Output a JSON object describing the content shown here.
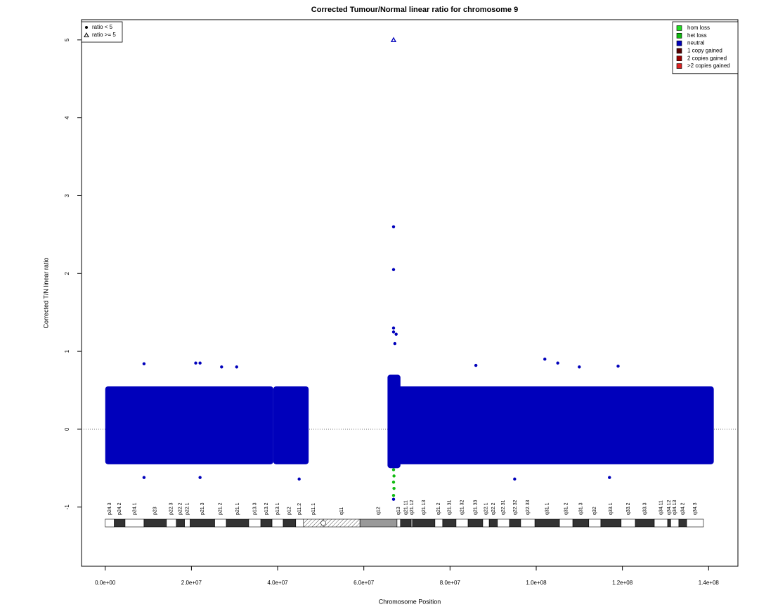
{
  "chart_data": {
    "type": "scatter",
    "title": "Corrected Tumour/Normal linear ratio for chromosome  9",
    "x_label": "Chromosome Position",
    "y_label": "Corrected T/N linear ratio",
    "xlim": [
      -5500000.0,
      146800000.0
    ],
    "ylim": [
      -1.76,
      5.26
    ],
    "xticks": [
      {
        "value": 0,
        "label": "0.0e+00"
      },
      {
        "value": 20000000.0,
        "label": "2.0e+07"
      },
      {
        "value": 40000000.0,
        "label": "4.0e+07"
      },
      {
        "value": 60000000.0,
        "label": "6.0e+07"
      },
      {
        "value": 80000000.0,
        "label": "8.0e+07"
      },
      {
        "value": 100000000.0,
        "label": "1.0e+08"
      },
      {
        "value": 120000000.0,
        "label": "1.2e+08"
      },
      {
        "value": 140000000.0,
        "label": "1.4e+08"
      }
    ],
    "yticks": [
      -1,
      0,
      1,
      2,
      3,
      4,
      5
    ],
    "hline": 0,
    "legend": "top-right",
    "shape_legend": [
      {
        "label": "ratio < 5",
        "marker": "dot"
      },
      {
        "label": "ratio >= 5",
        "marker": "triangle"
      }
    ],
    "series": [
      {
        "name": "hom loss",
        "color": "#22dd22",
        "x": [],
        "values": []
      },
      {
        "name": "het loss",
        "color": "#11bb11",
        "x": [
          66900000.0,
          66900000.0,
          67000000.0,
          66900000.0,
          67000000.0,
          66900000.0
        ],
        "values": [
          -0.45,
          -0.52,
          -0.6,
          -0.68,
          -0.76,
          -0.85
        ]
      },
      {
        "name": "neutral",
        "color": "#0000bb",
        "ranges": [
          {
            "x": [
              0,
              39000000.0
            ],
            "y": [
              -0.45,
              0.55
            ]
          },
          {
            "x": [
              39000000.0,
              47200000.0
            ],
            "y": [
              -0.45,
              0.55
            ]
          },
          {
            "x": [
              65500000.0,
              68500000.0
            ],
            "y": [
              -0.5,
              0.7
            ]
          },
          {
            "x": [
              66000000.0,
              141200000.0
            ],
            "y": [
              -0.45,
              0.55
            ]
          }
        ],
        "x": [
          66900000.0,
          66900000.0,
          66900000.0,
          66900000.0,
          66900000.0,
          67500000.0,
          67200000.0,
          102000000.0,
          105000000.0,
          9000000.0,
          21000000.0,
          22000000.0,
          27000000.0,
          30500000.0,
          86000000.0,
          110000000.0,
          119000000.0,
          9000000.0,
          22000000.0,
          45000000.0,
          95000000.0,
          117000000.0,
          66900000.0
        ],
        "values": [
          5,
          2.6,
          2.05,
          1.3,
          1.25,
          1.22,
          1.1,
          0.9,
          0.85,
          0.84,
          0.85,
          0.85,
          0.8,
          0.8,
          0.82,
          0.8,
          0.81,
          -0.62,
          -0.62,
          -0.64,
          -0.64,
          -0.62,
          -0.9
        ],
        "markers": [
          "triangle",
          "dot",
          "dot",
          "dot",
          "dot",
          "dot",
          "dot",
          "dot",
          "dot",
          "dot",
          "dot",
          "dot",
          "dot",
          "dot",
          "dot",
          "dot",
          "dot",
          "dot",
          "dot",
          "dot",
          "dot",
          "dot",
          "dot"
        ]
      },
      {
        "name": "1 copy gained",
        "color": "#550000",
        "x": [],
        "values": []
      },
      {
        "name": "2 copies gained",
        "color": "#990000",
        "x": [],
        "values": []
      },
      {
        "name": ">2 copies gained",
        "color": "#dd2222",
        "x": [],
        "values": []
      }
    ],
    "cytobands": {
      "names": [
        "p24.3",
        "p24.2",
        "p24.1",
        "p23",
        "p22.3",
        "p22.2",
        "p22.1",
        "p21.3",
        "p21.2",
        "p21.1",
        "p13.3",
        "p13.2",
        "p13.1",
        "p12",
        "p11.2",
        "p11.1",
        "q11",
        "q12",
        "q13",
        "q21.11",
        "q21.12",
        "q21.13",
        "q21.2",
        "q21.31",
        "q21.32",
        "q21.33",
        "q22.1",
        "q22.2",
        "q22.31",
        "q22.32",
        "q22.33",
        "q31.1",
        "q31.2",
        "q31.3",
        "q32",
        "q33.1",
        "q33.2",
        "q33.3",
        "q34.11",
        "q34.12",
        "q34.13",
        "q34.2",
        "q34.3"
      ],
      "starts": [
        0,
        2100000.0,
        4600000.0,
        9000000.0,
        14200000.0,
        16500000.0,
        18400000.0,
        19700000.0,
        25400000.0,
        28100000.0,
        33300000.0,
        36100000.0,
        38700000.0,
        41300000.0,
        44200000.0,
        46000000.0,
        50600000.0,
        59100000.0,
        67700000.0,
        68500000.0,
        71000000.0,
        71300000.0,
        76500000.0,
        78300000.0,
        81400000.0,
        84200000.0,
        87600000.0,
        89100000.0,
        91000000.0,
        93800000.0,
        96400000.0,
        99700000.0,
        105400000.0,
        108500000.0,
        112200000.0,
        115000000.0,
        119700000.0,
        123000000.0,
        127400000.0,
        130500000.0,
        131200000.0,
        133100000.0,
        134900000.0
      ],
      "ends": [
        2100000.0,
        4600000.0,
        9000000.0,
        14200000.0,
        16500000.0,
        18400000.0,
        19700000.0,
        25400000.0,
        28100000.0,
        33300000.0,
        36100000.0,
        38700000.0,
        41300000.0,
        44200000.0,
        46000000.0,
        50600000.0,
        59100000.0,
        67700000.0,
        68500000.0,
        71000000.0,
        71300000.0,
        76500000.0,
        78300000.0,
        81400000.0,
        84200000.0,
        87600000.0,
        89100000.0,
        91000000.0,
        93800000.0,
        96400000.0,
        99700000.0,
        105400000.0,
        108500000.0,
        112200000.0,
        115000000.0,
        119700000.0,
        123000000.0,
        127400000.0,
        130500000.0,
        131200000.0,
        133100000.0,
        134900000.0,
        138800000.0
      ],
      "stains": [
        "gneg",
        "gpos",
        "gneg",
        "gpos",
        "gneg",
        "gpos",
        "gneg",
        "gpos",
        "gneg",
        "gpos",
        "gneg",
        "gpos",
        "gneg",
        "gpos",
        "gneg",
        "acen",
        "acen",
        "gvar",
        "gneg",
        "gpos",
        "gneg",
        "gpos",
        "gneg",
        "gpos",
        "gneg",
        "gpos",
        "gneg",
        "gpos",
        "gneg",
        "gpos",
        "gneg",
        "gpos",
        "gneg",
        "gpos",
        "gneg",
        "gpos",
        "gneg",
        "gpos",
        "gneg",
        "gpos",
        "gneg",
        "gpos",
        "gneg"
      ]
    }
  }
}
